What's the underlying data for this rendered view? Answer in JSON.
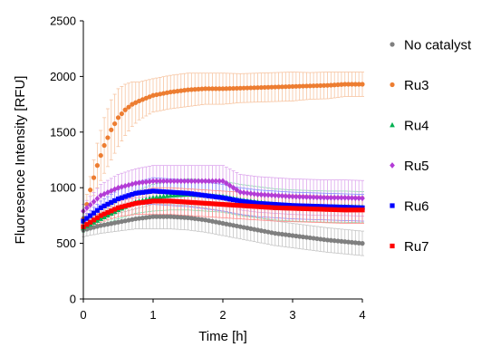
{
  "chart_data": {
    "type": "scatter",
    "title": "",
    "xlabel": "Time [h]",
    "ylabel": "Fluoresence Intensity [RFU]",
    "xlim": [
      0,
      4
    ],
    "ylim": [
      0,
      2500
    ],
    "x_ticks": [
      "0",
      "1",
      "2",
      "3",
      "4"
    ],
    "y_ticks": [
      "0",
      "500",
      "1000",
      "1500",
      "2000",
      "2500"
    ],
    "grid": false,
    "legend_position": "right",
    "series": [
      {
        "name": "No catalyst",
        "color": "#7f7f7f",
        "marker": "circle",
        "x": [
          0,
          0.25,
          0.5,
          0.75,
          1.0,
          1.25,
          1.5,
          1.75,
          2.0,
          2.25,
          2.5,
          2.75,
          3.0,
          3.25,
          3.5,
          3.75,
          4.0
        ],
        "y": [
          620,
          660,
          690,
          720,
          740,
          740,
          730,
          710,
          680,
          650,
          620,
          590,
          570,
          550,
          530,
          515,
          500
        ],
        "error": [
          60,
          70,
          80,
          90,
          110,
          110,
          110,
          110,
          110,
          110,
          110,
          110,
          110,
          110,
          110,
          110,
          110
        ]
      },
      {
        "name": "Ru3",
        "color": "#ed7d31",
        "marker": "circle",
        "x": [
          0,
          0.1,
          0.2,
          0.3,
          0.4,
          0.5,
          0.6,
          0.7,
          0.8,
          1.0,
          1.25,
          1.5,
          1.75,
          2.0,
          2.25,
          2.5,
          2.75,
          3.0,
          3.25,
          3.5,
          3.75,
          4.0
        ],
        "y": [
          720,
          980,
          1200,
          1380,
          1520,
          1630,
          1700,
          1750,
          1780,
          1830,
          1860,
          1880,
          1890,
          1890,
          1895,
          1900,
          1905,
          1910,
          1915,
          1920,
          1930,
          1930
        ],
        "error": [
          60,
          120,
          200,
          250,
          270,
          260,
          230,
          200,
          170,
          150,
          150,
          150,
          140,
          140,
          130,
          130,
          130,
          130,
          120,
          120,
          110,
          110
        ]
      },
      {
        "name": "Ru4",
        "color": "#00b050",
        "marker": "triangle",
        "x": [
          0,
          0.25,
          0.5,
          0.75,
          1.0,
          1.25,
          1.5,
          1.75,
          2.0,
          2.25,
          2.5,
          2.75,
          3.0,
          3.25,
          3.5,
          3.75,
          4.0
        ],
        "y": [
          640,
          720,
          800,
          870,
          910,
          930,
          940,
          930,
          920,
          890,
          870,
          850,
          840,
          835,
          830,
          830,
          825
        ],
        "error": [
          40,
          60,
          80,
          100,
          120,
          130,
          140,
          140,
          140,
          140,
          140,
          140,
          140,
          140,
          140,
          140,
          140
        ]
      },
      {
        "name": "Ru5",
        "color": "#b33bd6",
        "marker": "diamond",
        "x": [
          0,
          0.25,
          0.5,
          0.75,
          1.0,
          1.25,
          1.5,
          1.75,
          2.0,
          2.25,
          2.5,
          2.75,
          3.0,
          3.25,
          3.5,
          3.75,
          4.0
        ],
        "y": [
          790,
          930,
          1000,
          1040,
          1060,
          1060,
          1060,
          1060,
          1060,
          960,
          940,
          930,
          920,
          915,
          910,
          910,
          905
        ],
        "error": [
          60,
          100,
          120,
          130,
          140,
          140,
          140,
          140,
          140,
          160,
          160,
          160,
          160,
          160,
          160,
          160,
          160
        ]
      },
      {
        "name": "Ru6",
        "color": "#0000ff",
        "marker": "square",
        "x": [
          0,
          0.25,
          0.5,
          0.75,
          1.0,
          1.25,
          1.5,
          1.75,
          2.0,
          2.25,
          2.5,
          2.75,
          3.0,
          3.25,
          3.5,
          3.75,
          4.0
        ],
        "y": [
          700,
          820,
          900,
          950,
          970,
          960,
          950,
          930,
          910,
          880,
          860,
          850,
          840,
          835,
          830,
          825,
          820
        ],
        "error": [
          40,
          60,
          80,
          100,
          120,
          120,
          120,
          120,
          120,
          120,
          120,
          120,
          120,
          120,
          120,
          120,
          120
        ]
      },
      {
        "name": "Ru7",
        "color": "#ff0000",
        "marker": "square",
        "x": [
          0,
          0.25,
          0.5,
          0.75,
          1.0,
          1.25,
          1.5,
          1.75,
          2.0,
          2.25,
          2.5,
          2.75,
          3.0,
          3.25,
          3.5,
          3.75,
          4.0
        ],
        "y": [
          650,
          750,
          820,
          860,
          880,
          880,
          870,
          860,
          850,
          840,
          830,
          820,
          815,
          810,
          805,
          800,
          800
        ],
        "error": [
          40,
          60,
          80,
          100,
          120,
          120,
          120,
          120,
          120,
          120,
          120,
          120,
          120,
          120,
          120,
          120,
          120
        ]
      }
    ]
  }
}
